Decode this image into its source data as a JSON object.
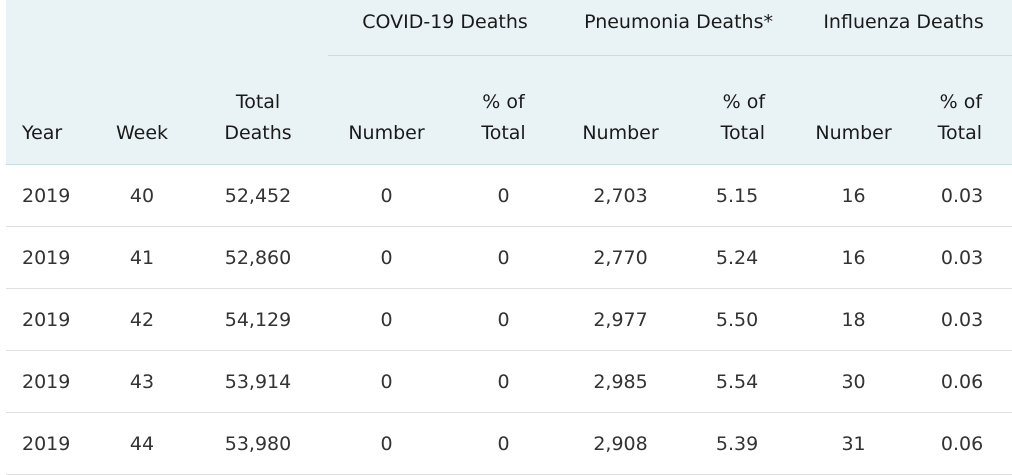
{
  "table": {
    "groups": [
      "COVID-19 Deaths",
      "Pneumonia Deaths*",
      "Influenza Deaths"
    ],
    "headers": {
      "year": "Year",
      "week": "Week",
      "total_deaths": [
        "Total",
        "Deaths"
      ],
      "covid_number": "Number",
      "covid_pct": [
        "% of",
        "Total"
      ],
      "pneu_number": "Number",
      "pneu_pct": [
        "% of",
        "Total"
      ],
      "flu_number": "Number",
      "flu_pct": [
        "% of",
        "Total"
      ]
    },
    "rows": [
      [
        "2019",
        "40",
        "52,452",
        "0",
        "0",
        "2,703",
        "5.15",
        "16",
        "0.03"
      ],
      [
        "2019",
        "41",
        "52,860",
        "0",
        "0",
        "2,770",
        "5.24",
        "16",
        "0.03"
      ],
      [
        "2019",
        "42",
        "54,129",
        "0",
        "0",
        "2,977",
        "5.50",
        "18",
        "0.03"
      ],
      [
        "2019",
        "43",
        "53,914",
        "0",
        "0",
        "2,985",
        "5.54",
        "30",
        "0.06"
      ],
      [
        "2019",
        "44",
        "53,980",
        "0",
        "0",
        "2,908",
        "5.39",
        "31",
        "0.06"
      ]
    ]
  }
}
